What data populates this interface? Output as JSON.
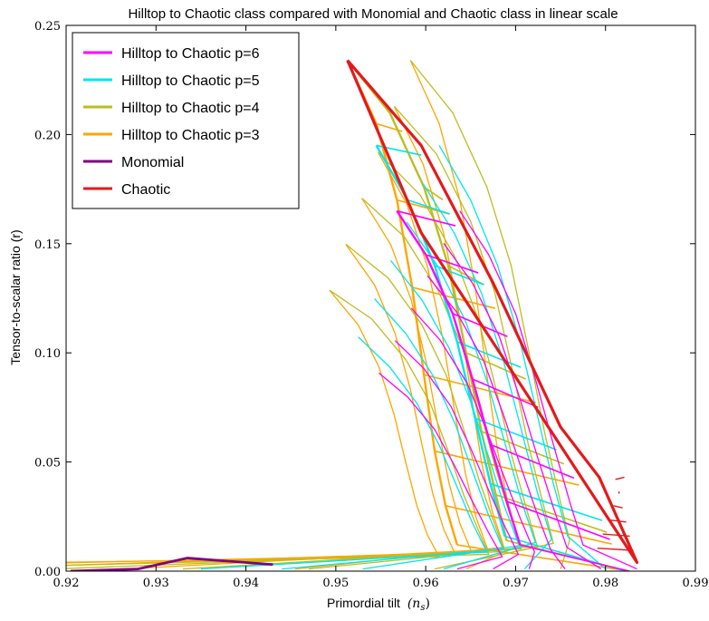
{
  "chart_data": {
    "type": "line",
    "title": "Hilltop to Chaotic class compared with Monomial and Chaotic class in linear scale",
    "xlabel": "Primordial tilt",
    "xlabel_symbol": "(n",
    "xlabel_sub": "s",
    "xlabel_close": ")",
    "ylabel": "Tensor-to-scalar ratio (r)",
    "xlim": [
      0.92,
      0.99
    ],
    "ylim": [
      0.0,
      0.25
    ],
    "xticks": [
      "0.92",
      "0.93",
      "0.94",
      "0.95",
      "0.96",
      "0.97",
      "0.98",
      "0.99"
    ],
    "yticks": [
      "0.00",
      "0.05",
      "0.10",
      "0.15",
      "0.20",
      "0.25"
    ],
    "legend_position": "upper-left",
    "legend": [
      {
        "name": "Hilltop to Chaotic p=6",
        "color": "#ff00ff"
      },
      {
        "name": "Hilltop to Chaotic p=5",
        "color": "#00e5ee"
      },
      {
        "name": "Hilltop to Chaotic p=4",
        "color": "#bcbd22"
      },
      {
        "name": "Hilltop to Chaotic p=3",
        "color": "#ffa500"
      },
      {
        "name": "Monomial",
        "color": "#800080"
      },
      {
        "name": "Chaotic",
        "color": "#e31a1c"
      }
    ],
    "series": [
      {
        "name": "Chaotic",
        "color": "#e31a1c",
        "x": [
          0.9513,
          0.9595,
          0.9675,
          0.975,
          0.9793,
          0.9835,
          0.9595,
          0.9513
        ],
        "y": [
          0.234,
          0.195,
          0.132,
          0.066,
          0.043,
          0.004,
          0.155,
          0.234
        ]
      },
      {
        "name": "Monomial",
        "color": "#800080",
        "x": [
          0.9205,
          0.928,
          0.9335,
          0.943
        ],
        "y": [
          0.0,
          0.001,
          0.006,
          0.003
        ]
      },
      {
        "name": "Hilltop to Chaotic p=3",
        "color": "#ffa500",
        "x": [
          0.9513,
          0.9545,
          0.9568,
          0.9585,
          0.9598,
          0.961,
          0.9622,
          0.9635
        ],
        "y": [
          0.234,
          0.205,
          0.17,
          0.13,
          0.09,
          0.055,
          0.03,
          0.012
        ]
      },
      {
        "name": "Hilltop to Chaotic p=4",
        "color": "#bcbd22",
        "x": [
          0.9513,
          0.956,
          0.9598,
          0.9625,
          0.9645,
          0.9662,
          0.9678,
          0.969
        ],
        "y": [
          0.234,
          0.21,
          0.176,
          0.14,
          0.1,
          0.064,
          0.035,
          0.014
        ]
      },
      {
        "name": "Hilltop to Chaotic p=5",
        "color": "#00e5ee",
        "x": [
          0.9545,
          0.958,
          0.961,
          0.9635,
          0.9655,
          0.9672,
          0.9688
        ],
        "y": [
          0.195,
          0.17,
          0.14,
          0.105,
          0.07,
          0.04,
          0.016
        ]
      },
      {
        "name": "Hilltop to Chaotic p=6",
        "color": "#ff00ff",
        "x": [
          0.9568,
          0.96,
          0.963,
          0.9652,
          0.9672,
          0.969,
          0.9705
        ],
        "y": [
          0.165,
          0.145,
          0.118,
          0.088,
          0.058,
          0.032,
          0.012
        ]
      }
    ],
    "grid": false
  }
}
